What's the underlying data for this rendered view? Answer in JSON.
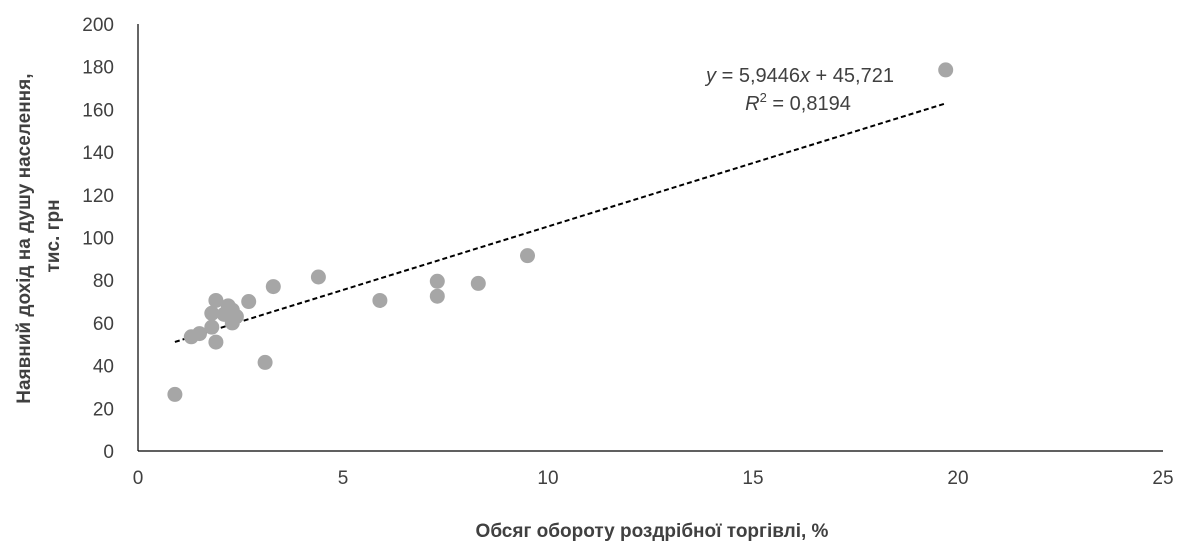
{
  "chart_data": {
    "type": "scatter",
    "title": "",
    "xlabel": "Обсяг обороту роздрібної торгівлі, %",
    "ylabel": [
      "Наявний дохід  на душу населення,",
      "тис. грн"
    ],
    "xlim": [
      0,
      25
    ],
    "ylim": [
      0,
      200
    ],
    "xticks": [
      "0",
      "5",
      "10",
      "15",
      "20",
      "25"
    ],
    "yticks": [
      "0",
      "20",
      "40",
      "60",
      "80",
      "100",
      "120",
      "140",
      "160",
      "180",
      "200"
    ],
    "grid": false,
    "marker_color": "#a6a6a6",
    "trendline_color": "#000000",
    "series": [
      {
        "points": [
          {
            "x": 0.9,
            "y": 26.5
          },
          {
            "x": 1.3,
            "y": 53.5
          },
          {
            "x": 1.5,
            "y": 55
          },
          {
            "x": 1.8,
            "y": 58
          },
          {
            "x": 1.8,
            "y": 64.5
          },
          {
            "x": 1.9,
            "y": 51
          },
          {
            "x": 1.9,
            "y": 70.5
          },
          {
            "x": 2.1,
            "y": 64
          },
          {
            "x": 2.2,
            "y": 68
          },
          {
            "x": 2.3,
            "y": 60
          },
          {
            "x": 2.3,
            "y": 66
          },
          {
            "x": 2.4,
            "y": 63
          },
          {
            "x": 2.7,
            "y": 70
          },
          {
            "x": 3.1,
            "y": 41.5
          },
          {
            "x": 3.3,
            "y": 77
          },
          {
            "x": 4.4,
            "y": 81.5
          },
          {
            "x": 5.9,
            "y": 70.5
          },
          {
            "x": 7.3,
            "y": 72.5
          },
          {
            "x": 7.3,
            "y": 79.5
          },
          {
            "x": 8.3,
            "y": 78.5
          },
          {
            "x": 9.5,
            "y": 91.5
          },
          {
            "x": 19.7,
            "y": 178.5
          }
        ]
      }
    ],
    "trendline": {
      "type": "linear",
      "slope": 5.9446,
      "intercept": 45.721,
      "x_range": [
        0.9,
        19.7
      ],
      "equation_y": "y",
      "equation_rest": " = 5,9446",
      "equation_x": "x",
      "equation_tail": " + 45,721",
      "r2_letter": "R",
      "r2_sup": "2",
      "r2_rest": " = 0,8194"
    }
  }
}
